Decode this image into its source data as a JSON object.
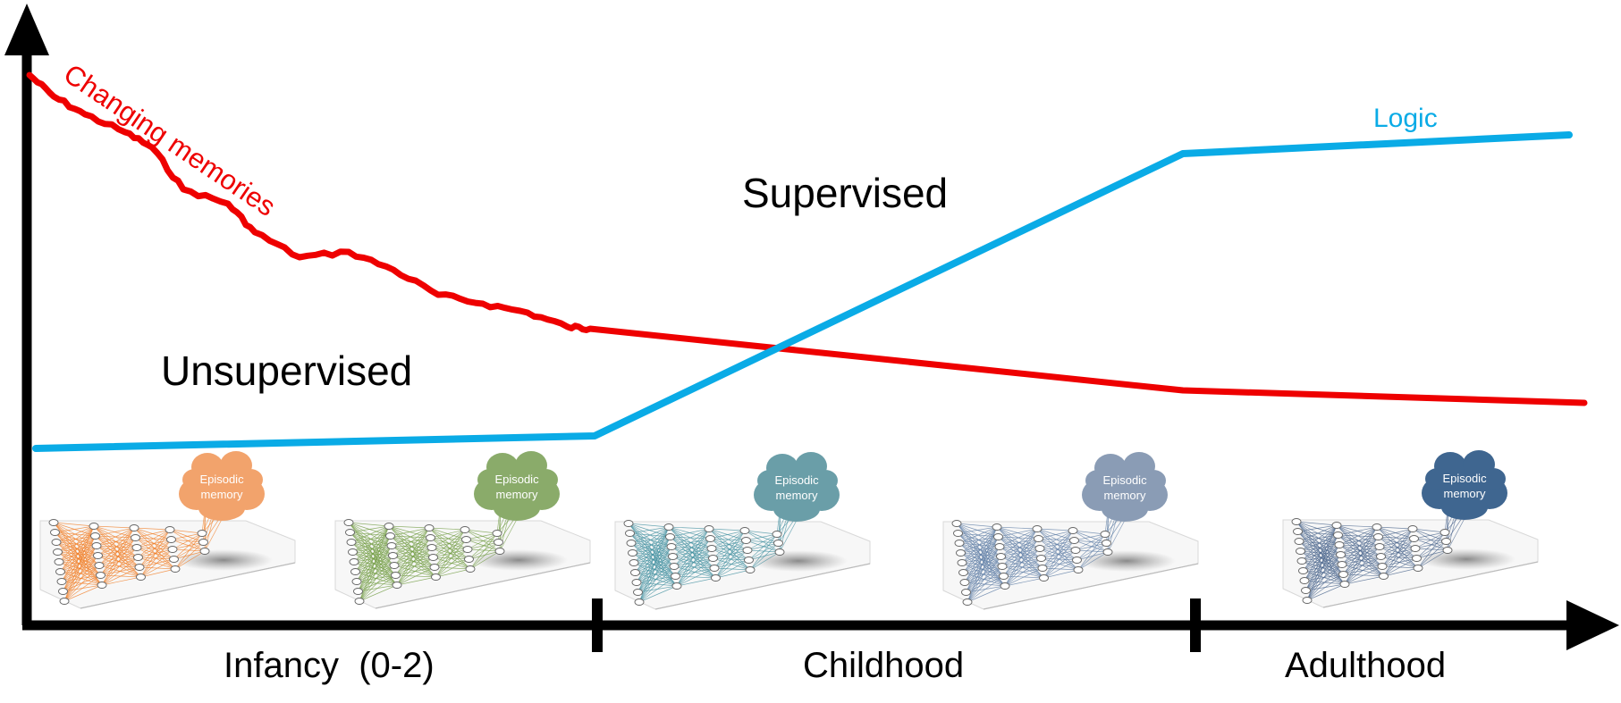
{
  "labels": {
    "changing_memories": "Changing memories",
    "logic": "Logic",
    "supervised": "Supervised",
    "unsupervised": "Unsupervised"
  },
  "stages": [
    {
      "label": "Infancy  (0-2)"
    },
    {
      "label": "Childhood"
    },
    {
      "label": "Adulthood"
    }
  ],
  "networks": [
    {
      "label_line1": "Episodic",
      "label_line2": "memory",
      "color": "#f07a1f",
      "cloud_color": "#f2a36c"
    },
    {
      "label_line1": "Episodic",
      "label_line2": "memory",
      "color": "#6e9a3e",
      "cloud_color": "#8aab6a"
    },
    {
      "label_line1": "Episodic",
      "label_line2": "memory",
      "color": "#3d8d9e",
      "cloud_color": "#6a9ea8"
    },
    {
      "label_line1": "Episodic",
      "label_line2": "memory",
      "color": "#5a7aa3",
      "cloud_color": "#8a9cb5"
    },
    {
      "label_line1": "Episodic",
      "label_line2": "memory",
      "color": "#46618a",
      "cloud_color": "#3f6690"
    }
  ],
  "colors": {
    "axis": "#000000",
    "changing_memories_line": "#ee0000",
    "logic_line": "#0aabe6"
  }
}
